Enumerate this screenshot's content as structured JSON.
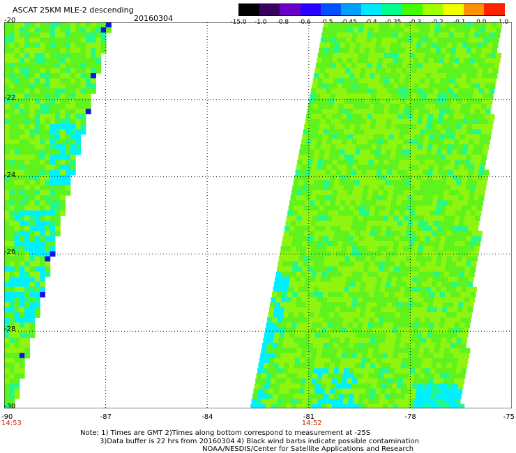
{
  "header": {
    "title": "ASCAT 25KM MLE-2 descending",
    "date": "20160304"
  },
  "colorbar": {
    "ticks": [
      "-15.0",
      "-1.0",
      "-0.8",
      "-0.6",
      "-0.5",
      "-0.45",
      "-0.4",
      "-0.35",
      "-0.3",
      "-0.2",
      "-0.1",
      "0.0",
      "1.0"
    ],
    "colors": [
      "#000000",
      "#3a0060",
      "#6a00c8",
      "#2a00ff",
      "#0050ff",
      "#00a0ff",
      "#00e8ff",
      "#00ff90",
      "#40ff00",
      "#a0ff00",
      "#f0ff00",
      "#ff9000",
      "#ff2000"
    ]
  },
  "map": {
    "lat_labels": [
      "-20",
      "-22",
      "-24",
      "-26",
      "-28",
      "-30"
    ],
    "lon_labels": [
      "-90",
      "-87",
      "-84",
      "-81",
      "-78",
      "-75"
    ],
    "lat_range": [
      -30,
      -20
    ],
    "lon_range": [
      -90,
      -75
    ],
    "grid": "dotted",
    "swath_colors": {
      "green": "#5ef21e",
      "light_green": "#8ff50f",
      "aqua_green": "#25f88a",
      "cyan": "#00f0ff",
      "blue": "#1010e8"
    },
    "times": [
      {
        "label": "14:53",
        "lon": -90
      },
      {
        "label": "14:52",
        "lon": -81
      }
    ]
  },
  "notes": [
    "Note: 1) Times are GMT 2)Times along bottom correspond to measurement at -25S",
    "3)Data buffer is 22 hrs from 20160304 4) Black wind barbs indicate possible contamination",
    "NOAA/NESDIS/Center for Satellite Applications and Research"
  ]
}
